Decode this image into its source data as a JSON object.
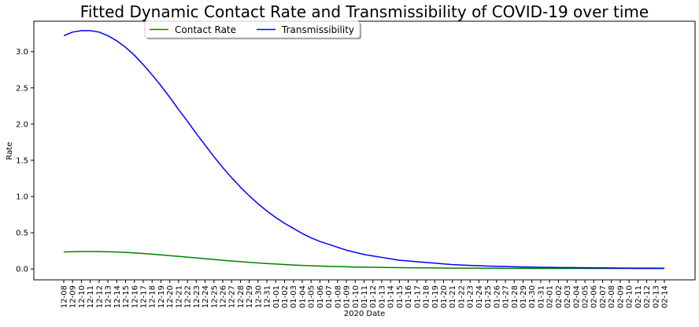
{
  "chart_data": {
    "type": "line",
    "title": "Fitted Dynamic Contact Rate and Transmissibility of COVID-19 over time",
    "xlabel": "2020 Date",
    "ylabel": "Rate",
    "ylim": [
      -0.15,
      3.42
    ],
    "yticks": [
      0.0,
      0.5,
      1.0,
      1.5,
      2.0,
      2.5,
      3.0
    ],
    "ytick_labels": [
      "0.0",
      "0.5",
      "1.0",
      "1.5",
      "2.0",
      "2.5",
      "3.0"
    ],
    "grid": false,
    "legend_position": "upper-left",
    "categories": [
      "12-08",
      "12-09",
      "12-10",
      "12-11",
      "12-12",
      "12-13",
      "12-14",
      "12-15",
      "12-16",
      "12-17",
      "12-18",
      "12-19",
      "12-20",
      "12-21",
      "12-22",
      "12-23",
      "12-24",
      "12-25",
      "12-26",
      "12-27",
      "12-28",
      "12-29",
      "12-30",
      "12-31",
      "01-01",
      "01-02",
      "01-03",
      "01-04",
      "01-05",
      "01-06",
      "01-07",
      "01-08",
      "01-09",
      "01-10",
      "01-11",
      "01-12",
      "01-13",
      "01-14",
      "01-15",
      "01-16",
      "01-17",
      "01-18",
      "01-19",
      "01-20",
      "01-21",
      "01-22",
      "01-23",
      "01-24",
      "01-25",
      "01-26",
      "01-27",
      "01-28",
      "01-29",
      "01-30",
      "01-31",
      "02-01",
      "02-02",
      "02-03",
      "02-04",
      "02-05",
      "02-06",
      "02-07",
      "02-08",
      "02-09",
      "02-10",
      "02-11",
      "02-12",
      "02-13",
      "02-14"
    ],
    "series": [
      {
        "name": "Contact Rate",
        "color": "#008000",
        "values": [
          0.235,
          0.238,
          0.24,
          0.241,
          0.24,
          0.238,
          0.234,
          0.228,
          0.221,
          0.213,
          0.204,
          0.194,
          0.184,
          0.174,
          0.163,
          0.153,
          0.142,
          0.131,
          0.12,
          0.11,
          0.101,
          0.092,
          0.083,
          0.075,
          0.068,
          0.061,
          0.055,
          0.049,
          0.044,
          0.04,
          0.036,
          0.033,
          0.03,
          0.027,
          0.025,
          0.023,
          0.021,
          0.02,
          0.018,
          0.017,
          0.016,
          0.015,
          0.014,
          0.013,
          0.012,
          0.012,
          0.011,
          0.011,
          0.01,
          0.01,
          0.009,
          0.009,
          0.009,
          0.008,
          0.008,
          0.008,
          0.008,
          0.007,
          0.007,
          0.007,
          0.007,
          0.007,
          0.007,
          0.007,
          0.007,
          0.006,
          0.006,
          0.006,
          0.006
        ]
      },
      {
        "name": "Transmissibility",
        "color": "#0000ff",
        "values": [
          3.22,
          3.27,
          3.29,
          3.29,
          3.27,
          3.22,
          3.15,
          3.06,
          2.95,
          2.82,
          2.68,
          2.53,
          2.37,
          2.2,
          2.04,
          1.87,
          1.71,
          1.55,
          1.4,
          1.26,
          1.13,
          1.01,
          0.9,
          0.8,
          0.71,
          0.63,
          0.56,
          0.49,
          0.43,
          0.38,
          0.34,
          0.3,
          0.26,
          0.23,
          0.2,
          0.18,
          0.16,
          0.14,
          0.12,
          0.11,
          0.1,
          0.09,
          0.08,
          0.07,
          0.06,
          0.055,
          0.05,
          0.045,
          0.04,
          0.037,
          0.034,
          0.031,
          0.028,
          0.026,
          0.024,
          0.022,
          0.02,
          0.019,
          0.018,
          0.017,
          0.016,
          0.015,
          0.014,
          0.013,
          0.012,
          0.012,
          0.011,
          0.011,
          0.01
        ]
      }
    ]
  }
}
